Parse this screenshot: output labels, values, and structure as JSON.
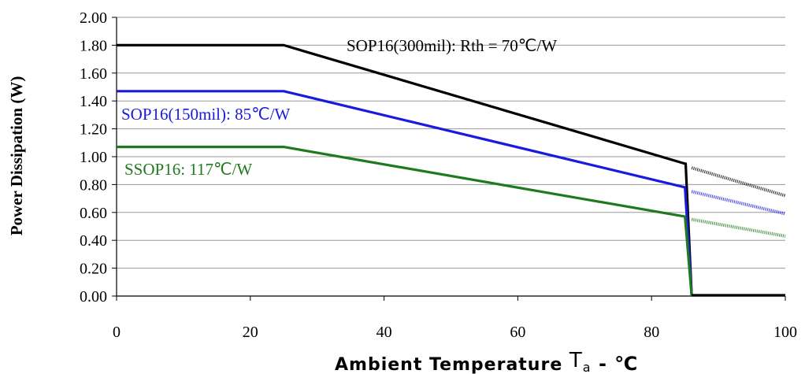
{
  "chart_data": {
    "type": "line",
    "xlabel": "Ambient Temperature Ta - ℃",
    "xlabel_parts": {
      "main": "Ambient Temperature ",
      "sym": "T",
      "sub": "a",
      "tail": " -  ℃"
    },
    "ylabel": "Power Dissipation (W)",
    "xlim": [
      0,
      100
    ],
    "ylim": [
      0,
      2.0
    ],
    "x_ticks": [
      "0",
      "20",
      "40",
      "60",
      "80",
      "100"
    ],
    "y_ticks": [
      "0.00",
      "0.20",
      "0.40",
      "0.60",
      "0.80",
      "1.00",
      "1.20",
      "1.40",
      "1.60",
      "1.80",
      "2.00"
    ],
    "grid": "horizontal",
    "series": [
      {
        "name": "SOP16(300mil): Rth = 70℃/W",
        "color": "#000000",
        "x": [
          0,
          25,
          85,
          85.1,
          86
        ],
        "y": [
          1.8,
          1.8,
          0.95,
          0.95,
          0.0
        ],
        "extrapolated": {
          "x": [
            86,
            100
          ],
          "y": [
            0.92,
            0.72
          ]
        },
        "label_position": "top-center"
      },
      {
        "name": "SOP16(150mil): 85℃/W",
        "color": "#1a1adf",
        "x": [
          0,
          25,
          85,
          86
        ],
        "y": [
          1.47,
          1.47,
          0.78,
          0.0
        ],
        "extrapolated": {
          "x": [
            86,
            100
          ],
          "y": [
            0.75,
            0.59
          ]
        },
        "label_position": "left"
      },
      {
        "name": "SSOP16: 117℃/W",
        "color": "#1f7a1f",
        "x": [
          0,
          25,
          85,
          86
        ],
        "y": [
          1.07,
          1.07,
          0.57,
          0.0
        ],
        "extrapolated": {
          "x": [
            86,
            100
          ],
          "y": [
            0.55,
            0.43
          ]
        },
        "label_position": "left"
      }
    ],
    "zero_line": {
      "x": [
        86,
        100
      ],
      "y": [
        0,
        0
      ]
    }
  }
}
